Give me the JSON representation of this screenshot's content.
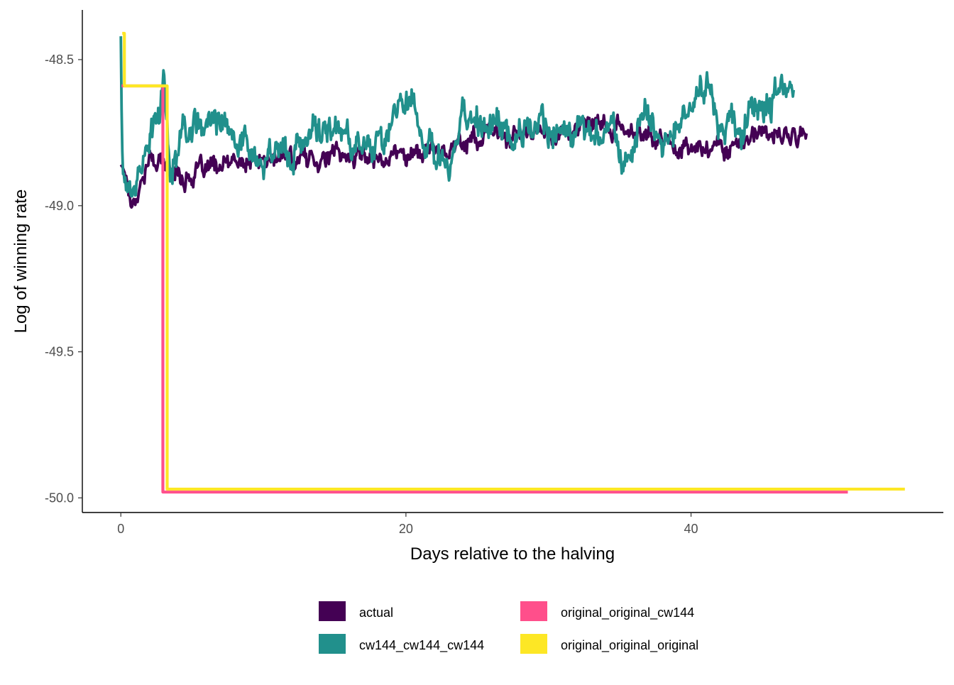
{
  "chart_data": {
    "type": "line",
    "title": "",
    "xlabel": "Days relative to the halving",
    "ylabel": "Log of winning rate",
    "xlim": [
      -2.7,
      57.7
    ],
    "ylim": [
      -50.05,
      -48.33
    ],
    "x_ticks": [
      0,
      20,
      40
    ],
    "x_tick_labels": [
      "0",
      "20",
      "40"
    ],
    "y_ticks": [
      -48.5,
      -49.0,
      -49.5,
      -50.0
    ],
    "y_tick_labels": [
      "-48.5",
      "-49.0",
      "-49.5",
      "-50.0"
    ],
    "grid": false,
    "legend_position": "bottom",
    "series": [
      {
        "name": "actual",
        "color": "#440154",
        "style": "noisy",
        "x_range": [
          0,
          48.1
        ],
        "points": [
          [
            0,
            -48.86
          ],
          [
            0.3,
            -48.88
          ],
          [
            0.7,
            -48.98
          ],
          [
            1.2,
            -48.95
          ],
          [
            2,
            -48.84
          ],
          [
            3,
            -48.86
          ],
          [
            4.5,
            -48.9
          ],
          [
            6,
            -48.88
          ],
          [
            8,
            -48.86
          ],
          [
            10,
            -48.85
          ],
          [
            12,
            -48.84
          ],
          [
            14,
            -48.83
          ],
          [
            16,
            -48.83
          ],
          [
            18,
            -48.83
          ],
          [
            20,
            -48.82
          ],
          [
            22,
            -48.81
          ],
          [
            24,
            -48.78
          ],
          [
            26,
            -48.76
          ],
          [
            28,
            -48.76
          ],
          [
            30,
            -48.75
          ],
          [
            32,
            -48.74
          ],
          [
            34,
            -48.73
          ],
          [
            36,
            -48.75
          ],
          [
            38,
            -48.78
          ],
          [
            40,
            -48.8
          ],
          [
            42,
            -48.8
          ],
          [
            44,
            -48.77
          ],
          [
            46,
            -48.76
          ],
          [
            48.1,
            -48.76
          ]
        ],
        "noise_amplitude": 0.035
      },
      {
        "name": "cw144_cw144_cw144",
        "color": "#21908C",
        "style": "noisy",
        "x_range": [
          0,
          47.2
        ],
        "points": [
          [
            0,
            -48.42
          ],
          [
            0.08,
            -48.8
          ],
          [
            0.3,
            -48.93
          ],
          [
            0.8,
            -48.95
          ],
          [
            1.5,
            -48.82
          ],
          [
            2.5,
            -48.72
          ],
          [
            3,
            -48.58
          ],
          [
            3.4,
            -48.87
          ],
          [
            4.5,
            -48.75
          ],
          [
            6,
            -48.71
          ],
          [
            8,
            -48.77
          ],
          [
            10,
            -48.8
          ],
          [
            12,
            -48.82
          ],
          [
            14,
            -48.76
          ],
          [
            16,
            -48.76
          ],
          [
            18,
            -48.8
          ],
          [
            19.5,
            -48.65
          ],
          [
            20.2,
            -48.58
          ],
          [
            21,
            -48.75
          ],
          [
            22,
            -48.78
          ],
          [
            23,
            -48.87
          ],
          [
            24,
            -48.73
          ],
          [
            26,
            -48.72
          ],
          [
            28,
            -48.75
          ],
          [
            30,
            -48.75
          ],
          [
            32,
            -48.72
          ],
          [
            34,
            -48.76
          ],
          [
            35.5,
            -48.82
          ],
          [
            36.5,
            -48.68
          ],
          [
            38,
            -48.78
          ],
          [
            40,
            -48.7
          ],
          [
            40.8,
            -48.55
          ],
          [
            42,
            -48.74
          ],
          [
            44,
            -48.7
          ],
          [
            46.5,
            -48.6
          ],
          [
            47.2,
            -48.68
          ]
        ],
        "noise_amplitude": 0.06
      },
      {
        "name": "original_original_cw144",
        "color": "#FF4F8B",
        "style": "step",
        "points": [
          [
            0.05,
            -48.59
          ],
          [
            2.95,
            -48.59
          ],
          [
            2.95,
            -49.98
          ],
          [
            51,
            -49.98
          ]
        ]
      },
      {
        "name": "original_original_original",
        "color": "#FDE725",
        "style": "step",
        "points": [
          [
            0.1,
            -48.41
          ],
          [
            0.25,
            -48.41
          ],
          [
            0.25,
            -48.59
          ],
          [
            3.25,
            -48.59
          ],
          [
            3.25,
            -49.97
          ],
          [
            55,
            -49.97
          ]
        ]
      }
    ]
  },
  "legend": {
    "items": [
      {
        "label": "actual",
        "color": "#440154"
      },
      {
        "label": "cw144_cw144_cw144",
        "color": "#21908C"
      },
      {
        "label": "original_original_cw144",
        "color": "#FF4F8B"
      },
      {
        "label": "original_original_original",
        "color": "#FDE725"
      }
    ]
  }
}
